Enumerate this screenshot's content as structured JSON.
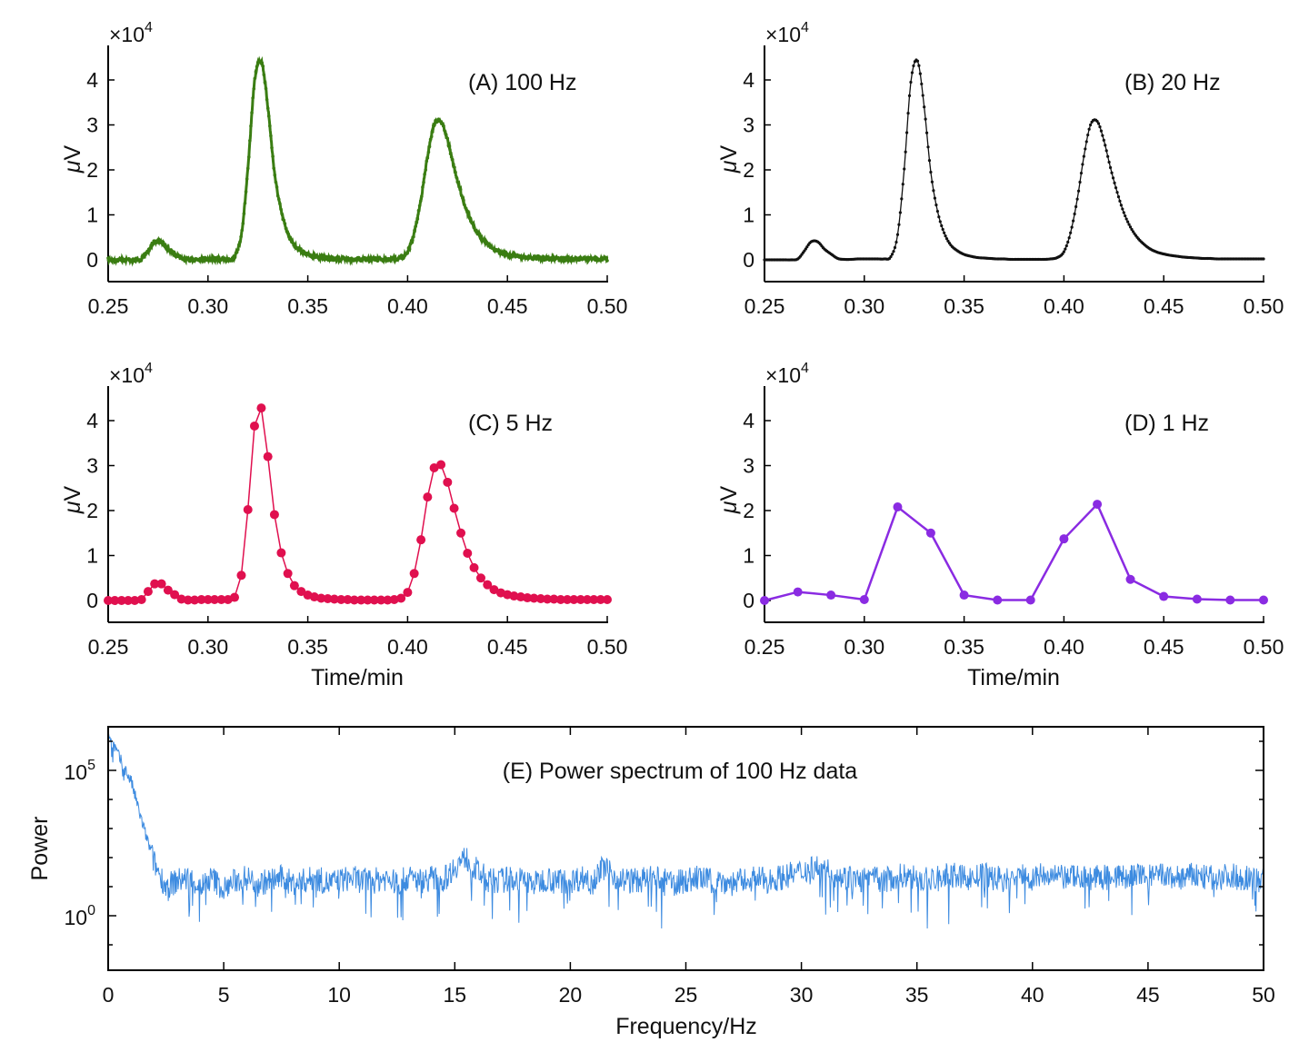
{
  "colors": {
    "A": "#3a7d12",
    "B": "#111111",
    "C": "#e0104f",
    "D": "#8a2be2",
    "E": "#3d8be0"
  },
  "chart_data": [
    {
      "id": "A",
      "type": "line",
      "title": "(A) 100 Hz",
      "ylabel": "μV",
      "xlabel": "",
      "y_multiplier": "×10^4",
      "xlim": [
        0.25,
        0.5
      ],
      "ylim": [
        -0.5,
        4.75
      ],
      "xticks": [
        "0.25",
        "0.30",
        "0.35",
        "0.40",
        "0.45",
        "0.50"
      ],
      "yticks": [
        "0",
        "1",
        "2",
        "3",
        "4"
      ],
      "x": [
        0.25,
        0.2533,
        0.2567,
        0.26,
        0.2633,
        0.2667,
        0.27,
        0.2733,
        0.2767,
        0.28,
        0.2833,
        0.2867,
        0.29,
        0.2933,
        0.2967,
        0.3,
        0.3033,
        0.3067,
        0.31,
        0.3133,
        0.3167,
        0.32,
        0.3233,
        0.3267,
        0.33,
        0.3333,
        0.3367,
        0.34,
        0.3433,
        0.3467,
        0.35,
        0.3533,
        0.3567,
        0.36,
        0.3633,
        0.3667,
        0.37,
        0.3733,
        0.3767,
        0.38,
        0.3833,
        0.3867,
        0.39,
        0.3933,
        0.3967,
        0.4,
        0.4033,
        0.4067,
        0.41,
        0.4133,
        0.4167,
        0.42,
        0.4233,
        0.4267,
        0.43,
        0.4333,
        0.4367,
        0.44,
        0.4433,
        0.4467,
        0.45,
        0.4533,
        0.4567,
        0.46,
        0.4633,
        0.4667,
        0.47,
        0.4733,
        0.4767,
        0.48,
        0.4833,
        0.4867,
        0.49,
        0.4933,
        0.4967,
        0.5
      ],
      "values": [
        0,
        0,
        0,
        0,
        0,
        0.02,
        0.2,
        0.4,
        0.4,
        0.24,
        0.13,
        0.03,
        0.01,
        0.01,
        0.02,
        0.02,
        0.02,
        0.02,
        0.02,
        0.07,
        0.56,
        2.02,
        3.95,
        4.42,
        3.4,
        1.95,
        1.08,
        0.6,
        0.33,
        0.2,
        0.12,
        0.08,
        0.05,
        0.04,
        0.03,
        0.02,
        0.02,
        0.01,
        0.01,
        0.01,
        0.01,
        0.01,
        0.01,
        0.02,
        0.05,
        0.18,
        0.6,
        1.35,
        2.3,
        3.0,
        3.08,
        2.66,
        2.05,
        1.5,
        1.05,
        0.73,
        0.5,
        0.35,
        0.24,
        0.17,
        0.13,
        0.1,
        0.08,
        0.06,
        0.05,
        0.04,
        0.03,
        0.03,
        0.02,
        0.02,
        0.02,
        0.02,
        0.02,
        0.02,
        0.02,
        0.02
      ]
    },
    {
      "id": "B",
      "type": "line",
      "title": "(B) 20 Hz",
      "ylabel": "μV",
      "xlabel": "",
      "y_multiplier": "×10^4",
      "xlim": [
        0.25,
        0.5
      ],
      "ylim": [
        -0.5,
        4.75
      ],
      "xticks": [
        "0.25",
        "0.30",
        "0.35",
        "0.40",
        "0.45",
        "0.50"
      ],
      "yticks": [
        "0",
        "1",
        "2",
        "3",
        "4"
      ],
      "x": [
        0.25,
        0.2533,
        0.2567,
        0.26,
        0.2633,
        0.2667,
        0.27,
        0.2733,
        0.2767,
        0.28,
        0.2833,
        0.2867,
        0.29,
        0.2933,
        0.2967,
        0.3,
        0.3033,
        0.3067,
        0.31,
        0.3133,
        0.3167,
        0.32,
        0.3233,
        0.3267,
        0.33,
        0.3333,
        0.3367,
        0.34,
        0.3433,
        0.3467,
        0.35,
        0.3533,
        0.3567,
        0.36,
        0.3633,
        0.3667,
        0.37,
        0.3733,
        0.3767,
        0.38,
        0.3833,
        0.3867,
        0.39,
        0.3933,
        0.3967,
        0.4,
        0.4033,
        0.4067,
        0.41,
        0.4133,
        0.4167,
        0.42,
        0.4233,
        0.4267,
        0.43,
        0.4333,
        0.4367,
        0.44,
        0.4433,
        0.4467,
        0.45,
        0.4533,
        0.4567,
        0.46,
        0.4633,
        0.4667,
        0.47,
        0.4733,
        0.4767,
        0.48,
        0.4833,
        0.4867,
        0.49,
        0.4933,
        0.4967,
        0.5
      ],
      "values": [
        0,
        0,
        0,
        0,
        0,
        0.02,
        0.2,
        0.4,
        0.4,
        0.24,
        0.13,
        0.03,
        0.01,
        0.01,
        0.02,
        0.02,
        0.02,
        0.02,
        0.02,
        0.07,
        0.56,
        2.02,
        3.95,
        4.42,
        3.4,
        1.95,
        1.08,
        0.6,
        0.33,
        0.2,
        0.12,
        0.08,
        0.05,
        0.04,
        0.03,
        0.02,
        0.02,
        0.01,
        0.01,
        0.01,
        0.01,
        0.01,
        0.01,
        0.02,
        0.05,
        0.18,
        0.6,
        1.35,
        2.3,
        3.0,
        3.08,
        2.66,
        2.05,
        1.5,
        1.05,
        0.73,
        0.5,
        0.35,
        0.24,
        0.17,
        0.13,
        0.1,
        0.08,
        0.06,
        0.05,
        0.04,
        0.03,
        0.03,
        0.02,
        0.02,
        0.02,
        0.02,
        0.02,
        0.02,
        0.02,
        0.02
      ]
    },
    {
      "id": "C",
      "type": "line",
      "title": "(C) 5 Hz",
      "ylabel": "μV",
      "xlabel": "Time/min",
      "y_multiplier": "×10^4",
      "xlim": [
        0.25,
        0.5
      ],
      "ylim": [
        -0.5,
        4.75
      ],
      "xticks": [
        "0.25",
        "0.30",
        "0.35",
        "0.40",
        "0.45",
        "0.50"
      ],
      "yticks": [
        "0",
        "1",
        "2",
        "3",
        "4"
      ],
      "x": [
        0.25,
        0.2533,
        0.2567,
        0.26,
        0.2633,
        0.2667,
        0.27,
        0.2733,
        0.2767,
        0.28,
        0.2833,
        0.2867,
        0.29,
        0.2933,
        0.2967,
        0.3,
        0.3033,
        0.3067,
        0.31,
        0.3133,
        0.3167,
        0.32,
        0.3233,
        0.3267,
        0.33,
        0.3333,
        0.3367,
        0.34,
        0.3433,
        0.3467,
        0.35,
        0.3533,
        0.3567,
        0.36,
        0.3633,
        0.3667,
        0.37,
        0.3733,
        0.3767,
        0.38,
        0.3833,
        0.3867,
        0.39,
        0.3933,
        0.3967,
        0.4,
        0.4033,
        0.4067,
        0.41,
        0.4133,
        0.4167,
        0.42,
        0.4233,
        0.4267,
        0.43,
        0.4333,
        0.4367,
        0.44,
        0.4433,
        0.4467,
        0.45,
        0.4533,
        0.4567,
        0.46,
        0.4633,
        0.4667,
        0.47,
        0.4733,
        0.4767,
        0.48,
        0.4833,
        0.4867,
        0.49,
        0.4933,
        0.4967,
        0.5
      ],
      "values": [
        0,
        0,
        0,
        0,
        0,
        0.02,
        0.2,
        0.37,
        0.37,
        0.23,
        0.13,
        0.03,
        0.01,
        0.01,
        0.02,
        0.02,
        0.02,
        0.02,
        0.02,
        0.07,
        0.56,
        2.02,
        3.88,
        4.28,
        3.2,
        1.91,
        1.06,
        0.6,
        0.33,
        0.2,
        0.12,
        0.08,
        0.05,
        0.04,
        0.03,
        0.02,
        0.02,
        0.01,
        0.01,
        0.01,
        0.01,
        0.01,
        0.01,
        0.02,
        0.05,
        0.18,
        0.6,
        1.35,
        2.3,
        2.95,
        3.02,
        2.63,
        2.05,
        1.5,
        1.05,
        0.73,
        0.5,
        0.35,
        0.24,
        0.17,
        0.13,
        0.1,
        0.08,
        0.06,
        0.05,
        0.04,
        0.03,
        0.03,
        0.02,
        0.02,
        0.02,
        0.02,
        0.02,
        0.02,
        0.02,
        0.02
      ]
    },
    {
      "id": "D",
      "type": "line",
      "title": "(D) 1 Hz",
      "ylabel": "μV",
      "xlabel": "Time/min",
      "y_multiplier": "×10^4",
      "xlim": [
        0.25,
        0.5
      ],
      "ylim": [
        -0.5,
        4.75
      ],
      "xticks": [
        "0.25",
        "0.30",
        "0.35",
        "0.40",
        "0.45",
        "0.50"
      ],
      "yticks": [
        "0",
        "1",
        "2",
        "3",
        "4"
      ],
      "x": [
        0.25,
        0.2667,
        0.2833,
        0.3,
        0.3167,
        0.3333,
        0.35,
        0.3667,
        0.3833,
        0.4,
        0.4167,
        0.4333,
        0.45,
        0.4667,
        0.4833,
        0.5
      ],
      "values": [
        0,
        0.19,
        0.12,
        0.02,
        2.08,
        1.5,
        0.12,
        0.01,
        0.01,
        1.37,
        2.14,
        0.47,
        0.09,
        0.03,
        0.01,
        0.01
      ]
    },
    {
      "id": "E",
      "type": "line",
      "title": "(E) Power spectrum of 100 Hz data",
      "ylabel": "Power",
      "xlabel": "Frequency/Hz",
      "yscale": "log",
      "xlim": [
        0,
        50
      ],
      "ylim": [
        0.013,
        3000000
      ],
      "xticks": [
        "0",
        "5",
        "10",
        "15",
        "20",
        "25",
        "30",
        "35",
        "40",
        "45",
        "50"
      ],
      "yticks": [
        "10^0",
        "10^5"
      ],
      "x": [
        0,
        0.5,
        1,
        1.5,
        2,
        2.5,
        3,
        3.5,
        4,
        4.5,
        5,
        5.5,
        6,
        6.5,
        7,
        7.5,
        8,
        8.5,
        9,
        9.5,
        10,
        10.5,
        11,
        11.5,
        12,
        12.5,
        13,
        13.5,
        14,
        14.5,
        15,
        15.5,
        16,
        16.5,
        17,
        17.5,
        18,
        18.5,
        19,
        19.5,
        20,
        20.5,
        21,
        21.5,
        22,
        22.5,
        23,
        23.5,
        24,
        24.5,
        25,
        25.5,
        26,
        26.5,
        27,
        27.5,
        28,
        28.5,
        29,
        29.5,
        30,
        30.5,
        31,
        31.5,
        32,
        32.5,
        33,
        33.5,
        34,
        34.5,
        35,
        35.5,
        36,
        36.5,
        37,
        37.5,
        38,
        38.5,
        39,
        39.5,
        40,
        40.5,
        41,
        41.5,
        42,
        42.5,
        43,
        43.5,
        44,
        44.5,
        45,
        45.5,
        46,
        46.5,
        47,
        47.5,
        48,
        48.5,
        49,
        49.5,
        50
      ],
      "values": [
        2000000,
        250000,
        40000,
        1300,
        63,
        10,
        16,
        20,
        10,
        20,
        8,
        16,
        20,
        13,
        16,
        20,
        13,
        16,
        20,
        13,
        16,
        20,
        16,
        16,
        20,
        13,
        20,
        16,
        20,
        16,
        50,
        100,
        32,
        16,
        16,
        20,
        16,
        13,
        20,
        16,
        16,
        20,
        20,
        50,
        20,
        16,
        16,
        20,
        16,
        13,
        16,
        20,
        16,
        16,
        13,
        16,
        20,
        16,
        20,
        25,
        32,
        50,
        40,
        25,
        20,
        16,
        20,
        16,
        20,
        25,
        20,
        16,
        20,
        25,
        20,
        20,
        25,
        20,
        16,
        25,
        20,
        25,
        20,
        20,
        25,
        20,
        20,
        25,
        20,
        25,
        20,
        25,
        20,
        20,
        25,
        20,
        20,
        25,
        20,
        20,
        16
      ]
    }
  ]
}
